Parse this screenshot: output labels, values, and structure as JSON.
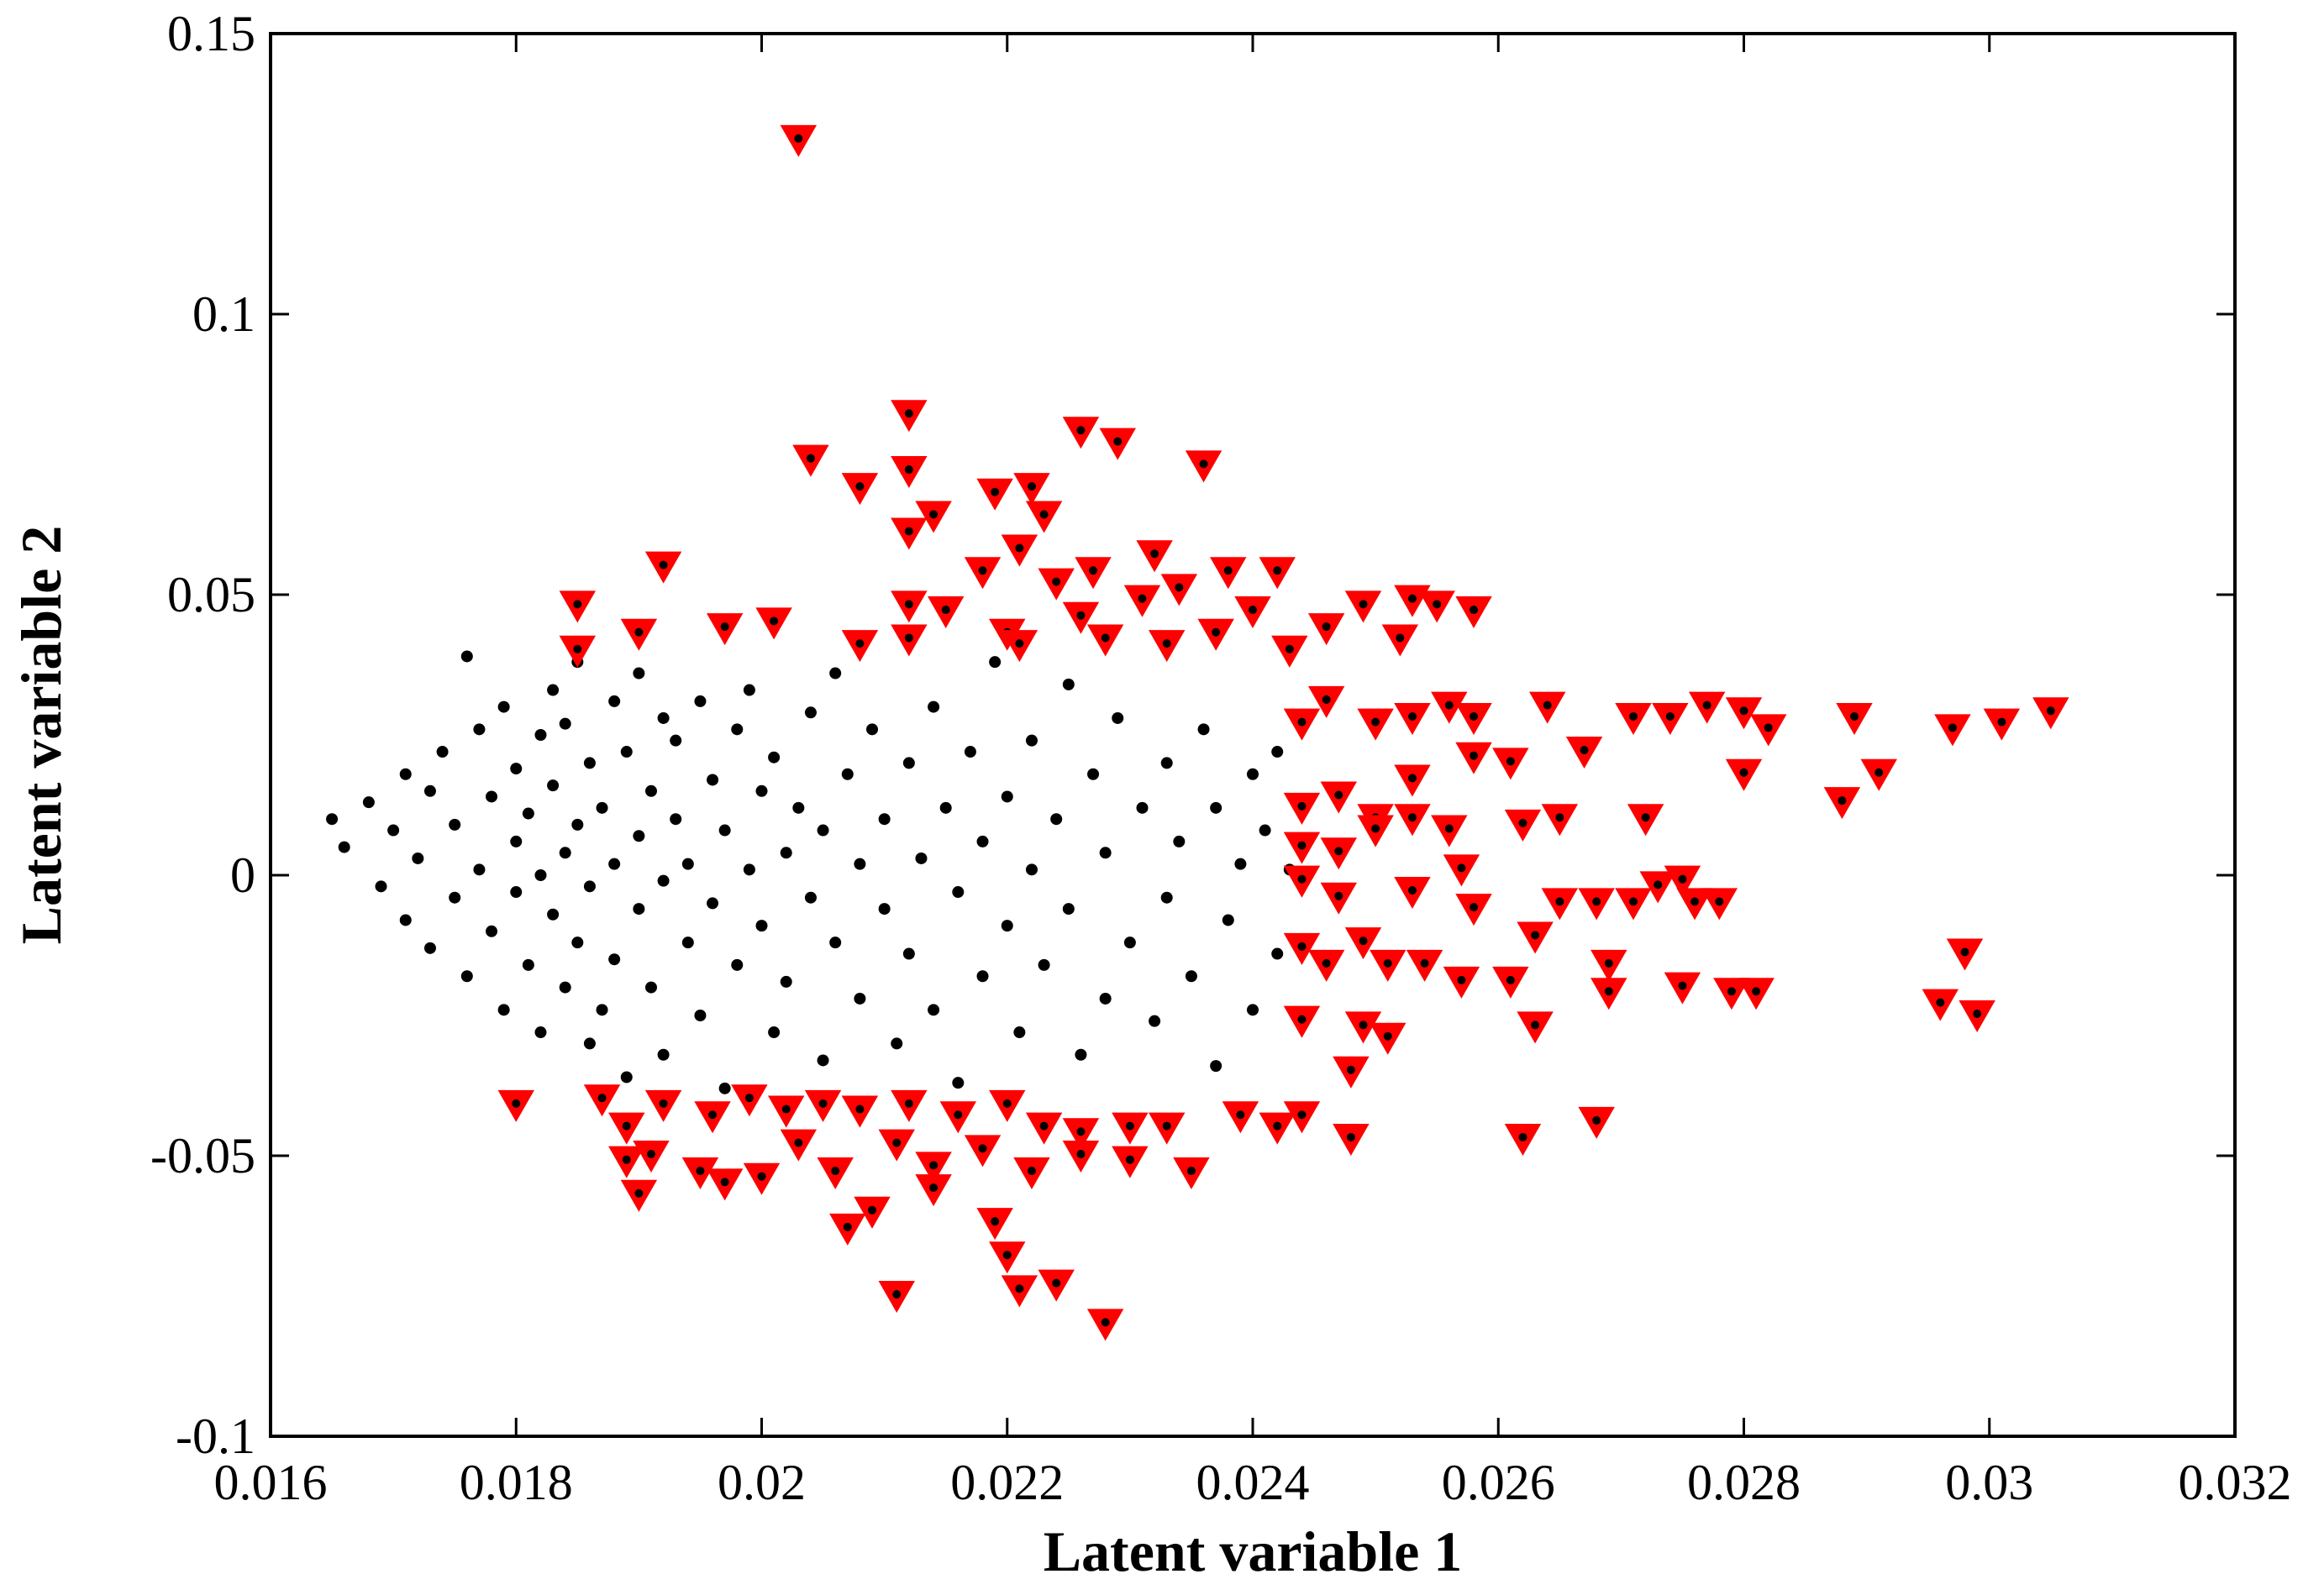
{
  "chart_data": {
    "type": "scatter",
    "title": "",
    "xlabel": "Latent variable 1",
    "ylabel": "Latent variable 2",
    "xlim": [
      0.016,
      0.032
    ],
    "ylim": [
      -0.1,
      0.15
    ],
    "x_ticks": [
      0.016,
      0.018,
      0.02,
      0.022,
      0.024,
      0.026,
      0.028,
      0.03,
      0.032
    ],
    "x_tick_labels": [
      "0.016",
      "0.018",
      "0.02",
      "0.022",
      "0.024",
      "0.026",
      "0.028",
      "0.03",
      "0.032"
    ],
    "y_ticks": [
      -0.1,
      -0.05,
      0,
      0.05,
      0.1,
      0.15
    ],
    "y_tick_labels": [
      "-0.1",
      "-0.05",
      "0",
      "0.05",
      "0.1",
      "0.15"
    ],
    "grid": false,
    "legend": "none",
    "series": [
      {
        "marker": "dot",
        "color": "#000000",
        "points": [
          [
            0.0165,
            0.01
          ],
          [
            0.0166,
            0.005
          ],
          [
            0.0168,
            0.013
          ],
          [
            0.0169,
            -0.002
          ],
          [
            0.017,
            0.008
          ],
          [
            0.0171,
            0.018
          ],
          [
            0.0171,
            -0.008
          ],
          [
            0.0172,
            0.003
          ],
          [
            0.0173,
            -0.013
          ],
          [
            0.0173,
            0.015
          ],
          [
            0.0174,
            0.022
          ],
          [
            0.0175,
            -0.004
          ],
          [
            0.0175,
            0.009
          ],
          [
            0.0176,
            0.039
          ],
          [
            0.0176,
            -0.018
          ],
          [
            0.0177,
            0.026
          ],
          [
            0.0177,
            0.001
          ],
          [
            0.0178,
            -0.01
          ],
          [
            0.0178,
            0.014
          ],
          [
            0.0179,
            -0.024
          ],
          [
            0.0179,
            0.03
          ],
          [
            0.018,
            0.006
          ],
          [
            0.018,
            -0.003
          ],
          [
            0.018,
            0.019
          ],
          [
            0.0181,
            -0.016
          ],
          [
            0.0181,
            0.011
          ],
          [
            0.0182,
            0.025
          ],
          [
            0.0182,
            -0.028
          ],
          [
            0.0182,
            0.0
          ],
          [
            0.0183,
            0.033
          ],
          [
            0.0183,
            -0.007
          ],
          [
            0.0183,
            0.016
          ],
          [
            0.0184,
            -0.02
          ],
          [
            0.0184,
            0.004
          ],
          [
            0.0184,
            0.027
          ],
          [
            0.0185,
            -0.012
          ],
          [
            0.0185,
            0.038
          ],
          [
            0.0185,
            0.009
          ],
          [
            0.0186,
            -0.03
          ],
          [
            0.0186,
            0.02
          ],
          [
            0.0186,
            -0.002
          ],
          [
            0.0187,
            0.012
          ],
          [
            0.0187,
            -0.024
          ],
          [
            0.0188,
            0.031
          ],
          [
            0.0188,
            0.002
          ],
          [
            0.0188,
            -0.015
          ],
          [
            0.0189,
            0.022
          ],
          [
            0.0189,
            -0.036
          ],
          [
            0.019,
            0.007
          ],
          [
            0.019,
            -0.006
          ],
          [
            0.019,
            0.036
          ],
          [
            0.0191,
            0.015
          ],
          [
            0.0191,
            -0.02
          ],
          [
            0.0192,
            0.028
          ],
          [
            0.0192,
            -0.001
          ],
          [
            0.0192,
            -0.032
          ],
          [
            0.0193,
            0.01
          ],
          [
            0.0193,
            0.024
          ],
          [
            0.0194,
            -0.012
          ],
          [
            0.0194,
            0.002
          ],
          [
            0.0195,
            0.031
          ],
          [
            0.0195,
            -0.025
          ],
          [
            0.0196,
            0.017
          ],
          [
            0.0196,
            -0.005
          ],
          [
            0.0197,
            0.008
          ],
          [
            0.0197,
            -0.038
          ],
          [
            0.0198,
            0.026
          ],
          [
            0.0198,
            -0.016
          ],
          [
            0.0199,
            0.001
          ],
          [
            0.0199,
            0.033
          ],
          [
            0.02,
            -0.009
          ],
          [
            0.02,
            0.015
          ],
          [
            0.0201,
            -0.028
          ],
          [
            0.0201,
            0.021
          ],
          [
            0.0202,
            0.004
          ],
          [
            0.0202,
            -0.019
          ],
          [
            0.0203,
            0.012
          ],
          [
            0.0204,
            0.029
          ],
          [
            0.0204,
            -0.004
          ],
          [
            0.0205,
            -0.033
          ],
          [
            0.0205,
            0.008
          ],
          [
            0.0206,
            0.036
          ],
          [
            0.0206,
            -0.012
          ],
          [
            0.0207,
            0.018
          ],
          [
            0.0208,
            -0.022
          ],
          [
            0.0208,
            0.002
          ],
          [
            0.0209,
            0.026
          ],
          [
            0.021,
            -0.006
          ],
          [
            0.021,
            0.01
          ],
          [
            0.0211,
            -0.03
          ],
          [
            0.0212,
            0.02
          ],
          [
            0.0212,
            -0.014
          ],
          [
            0.0213,
            0.003
          ],
          [
            0.0214,
            0.03
          ],
          [
            0.0214,
            -0.024
          ],
          [
            0.0215,
            0.012
          ],
          [
            0.0216,
            -0.003
          ],
          [
            0.0216,
            -0.037
          ],
          [
            0.0217,
            0.022
          ],
          [
            0.0218,
            0.006
          ],
          [
            0.0218,
            -0.018
          ],
          [
            0.0219,
            0.038
          ],
          [
            0.022,
            0.014
          ],
          [
            0.022,
            -0.009
          ],
          [
            0.0221,
            -0.028
          ],
          [
            0.0222,
            0.024
          ],
          [
            0.0222,
            0.001
          ],
          [
            0.0223,
            -0.016
          ],
          [
            0.0224,
            0.01
          ],
          [
            0.0225,
            0.034
          ],
          [
            0.0225,
            -0.006
          ],
          [
            0.0226,
            -0.032
          ],
          [
            0.0227,
            0.018
          ],
          [
            0.0228,
            0.004
          ],
          [
            0.0228,
            -0.022
          ],
          [
            0.0229,
            0.028
          ],
          [
            0.023,
            -0.012
          ],
          [
            0.0231,
            0.012
          ],
          [
            0.0232,
            -0.026
          ],
          [
            0.0233,
            0.02
          ],
          [
            0.0233,
            -0.004
          ],
          [
            0.0234,
            0.006
          ],
          [
            0.0235,
            -0.018
          ],
          [
            0.0236,
            0.026
          ],
          [
            0.0237,
            -0.034
          ],
          [
            0.0237,
            0.012
          ],
          [
            0.0238,
            -0.008
          ],
          [
            0.0239,
            0.002
          ],
          [
            0.024,
            0.018
          ],
          [
            0.024,
            -0.024
          ],
          [
            0.0241,
            0.008
          ],
          [
            0.0242,
            -0.014
          ],
          [
            0.0242,
            0.022
          ],
          [
            0.0243,
            0.001
          ]
        ]
      },
      {
        "marker": "triangle-down",
        "color": "#ff0000",
        "points": [
          [
            0.0203,
            0.131
          ],
          [
            0.0212,
            0.082
          ],
          [
            0.0226,
            0.079
          ],
          [
            0.0229,
            0.077
          ],
          [
            0.0204,
            0.074
          ],
          [
            0.0236,
            0.073
          ],
          [
            0.0212,
            0.072
          ],
          [
            0.0208,
            0.069
          ],
          [
            0.0219,
            0.068
          ],
          [
            0.0222,
            0.069
          ],
          [
            0.0223,
            0.064
          ],
          [
            0.0214,
            0.064
          ],
          [
            0.0212,
            0.061
          ],
          [
            0.0221,
            0.058
          ],
          [
            0.0192,
            0.055
          ],
          [
            0.0218,
            0.054
          ],
          [
            0.0227,
            0.054
          ],
          [
            0.0232,
            0.057
          ],
          [
            0.0238,
            0.054
          ],
          [
            0.0242,
            0.054
          ],
          [
            0.0234,
            0.051
          ],
          [
            0.0224,
            0.052
          ],
          [
            0.0185,
            0.048
          ],
          [
            0.019,
            0.043
          ],
          [
            0.0197,
            0.044
          ],
          [
            0.0201,
            0.045
          ],
          [
            0.0208,
            0.041
          ],
          [
            0.0212,
            0.048
          ],
          [
            0.0215,
            0.047
          ],
          [
            0.022,
            0.043
          ],
          [
            0.0226,
            0.046
          ],
          [
            0.0231,
            0.049
          ],
          [
            0.024,
            0.047
          ],
          [
            0.0185,
            0.04
          ],
          [
            0.0212,
            0.042
          ],
          [
            0.0221,
            0.041
          ],
          [
            0.0228,
            0.042
          ],
          [
            0.0233,
            0.041
          ],
          [
            0.0237,
            0.043
          ],
          [
            0.0243,
            0.04
          ],
          [
            0.0246,
            0.044
          ],
          [
            0.0249,
            0.048
          ],
          [
            0.0253,
            0.049
          ],
          [
            0.0255,
            0.048
          ],
          [
            0.0258,
            0.047
          ],
          [
            0.0252,
            0.042
          ],
          [
            0.0244,
            0.027
          ],
          [
            0.0246,
            0.031
          ],
          [
            0.025,
            0.027
          ],
          [
            0.0253,
            0.028
          ],
          [
            0.0256,
            0.03
          ],
          [
            0.0258,
            0.028
          ],
          [
            0.0261,
            0.02
          ],
          [
            0.0264,
            0.03
          ],
          [
            0.0267,
            0.022
          ],
          [
            0.0271,
            0.028
          ],
          [
            0.0274,
            0.028
          ],
          [
            0.0277,
            0.03
          ],
          [
            0.028,
            0.029
          ],
          [
            0.0282,
            0.026
          ],
          [
            0.0289,
            0.028
          ],
          [
            0.0297,
            0.026
          ],
          [
            0.0301,
            0.027
          ],
          [
            0.0305,
            0.029
          ],
          [
            0.0291,
            0.018
          ],
          [
            0.0288,
            0.013
          ],
          [
            0.028,
            0.018
          ],
          [
            0.0272,
            0.01
          ],
          [
            0.0265,
            0.01
          ],
          [
            0.0262,
            0.009
          ],
          [
            0.0258,
            0.021
          ],
          [
            0.0253,
            0.017
          ],
          [
            0.025,
            0.01
          ],
          [
            0.0247,
            0.014
          ],
          [
            0.0244,
            0.012
          ],
          [
            0.0244,
            0.005
          ],
          [
            0.0247,
            0.004
          ],
          [
            0.025,
            0.008
          ],
          [
            0.0253,
            0.01
          ],
          [
            0.0256,
            0.008
          ],
          [
            0.0257,
            0.001
          ],
          [
            0.0244,
            -0.001
          ],
          [
            0.0247,
            -0.004
          ],
          [
            0.0253,
            -0.003
          ],
          [
            0.0258,
            -0.006
          ],
          [
            0.0265,
            -0.005
          ],
          [
            0.0268,
            -0.005
          ],
          [
            0.0271,
            -0.005
          ],
          [
            0.0273,
            -0.002
          ],
          [
            0.0275,
            -0.001
          ],
          [
            0.0276,
            -0.005
          ],
          [
            0.0278,
            -0.005
          ],
          [
            0.0244,
            -0.013
          ],
          [
            0.0246,
            -0.016
          ],
          [
            0.0249,
            -0.012
          ],
          [
            0.0251,
            -0.016
          ],
          [
            0.0254,
            -0.016
          ],
          [
            0.0257,
            -0.019
          ],
          [
            0.0261,
            -0.019
          ],
          [
            0.0263,
            -0.011
          ],
          [
            0.0269,
            -0.016
          ],
          [
            0.0269,
            -0.021
          ],
          [
            0.0275,
            -0.02
          ],
          [
            0.0279,
            -0.021
          ],
          [
            0.0281,
            -0.021
          ],
          [
            0.0298,
            -0.014
          ],
          [
            0.0296,
            -0.023
          ],
          [
            0.0299,
            -0.025
          ],
          [
            0.0263,
            -0.027
          ],
          [
            0.0244,
            -0.026
          ],
          [
            0.0249,
            -0.027
          ],
          [
            0.0251,
            -0.029
          ],
          [
            0.0248,
            -0.035
          ],
          [
            0.0244,
            -0.043
          ],
          [
            0.0248,
            -0.047
          ],
          [
            0.0262,
            -0.047
          ],
          [
            0.0268,
            -0.044
          ],
          [
            0.018,
            -0.041
          ],
          [
            0.0187,
            -0.04
          ],
          [
            0.0189,
            -0.045
          ],
          [
            0.0192,
            -0.041
          ],
          [
            0.0196,
            -0.043
          ],
          [
            0.0199,
            -0.04
          ],
          [
            0.0202,
            -0.042
          ],
          [
            0.0205,
            -0.041
          ],
          [
            0.0208,
            -0.042
          ],
          [
            0.0212,
            -0.041
          ],
          [
            0.0216,
            -0.043
          ],
          [
            0.022,
            -0.041
          ],
          [
            0.0223,
            -0.045
          ],
          [
            0.0226,
            -0.046
          ],
          [
            0.023,
            -0.045
          ],
          [
            0.0233,
            -0.045
          ],
          [
            0.0239,
            -0.043
          ],
          [
            0.0242,
            -0.045
          ],
          [
            0.0189,
            -0.051
          ],
          [
            0.0191,
            -0.05
          ],
          [
            0.0195,
            -0.053
          ],
          [
            0.0197,
            -0.055
          ],
          [
            0.02,
            -0.054
          ],
          [
            0.0203,
            -0.048
          ],
          [
            0.0206,
            -0.053
          ],
          [
            0.0211,
            -0.048
          ],
          [
            0.0214,
            -0.052
          ],
          [
            0.0218,
            -0.049
          ],
          [
            0.0222,
            -0.053
          ],
          [
            0.0226,
            -0.05
          ],
          [
            0.023,
            -0.051
          ],
          [
            0.0235,
            -0.053
          ],
          [
            0.019,
            -0.057
          ],
          [
            0.0207,
            -0.063
          ],
          [
            0.0209,
            -0.06
          ],
          [
            0.0214,
            -0.056
          ],
          [
            0.0219,
            -0.062
          ],
          [
            0.022,
            -0.068
          ],
          [
            0.0211,
            -0.075
          ],
          [
            0.0221,
            -0.074
          ],
          [
            0.0224,
            -0.073
          ],
          [
            0.0228,
            -0.08
          ]
        ]
      }
    ]
  }
}
